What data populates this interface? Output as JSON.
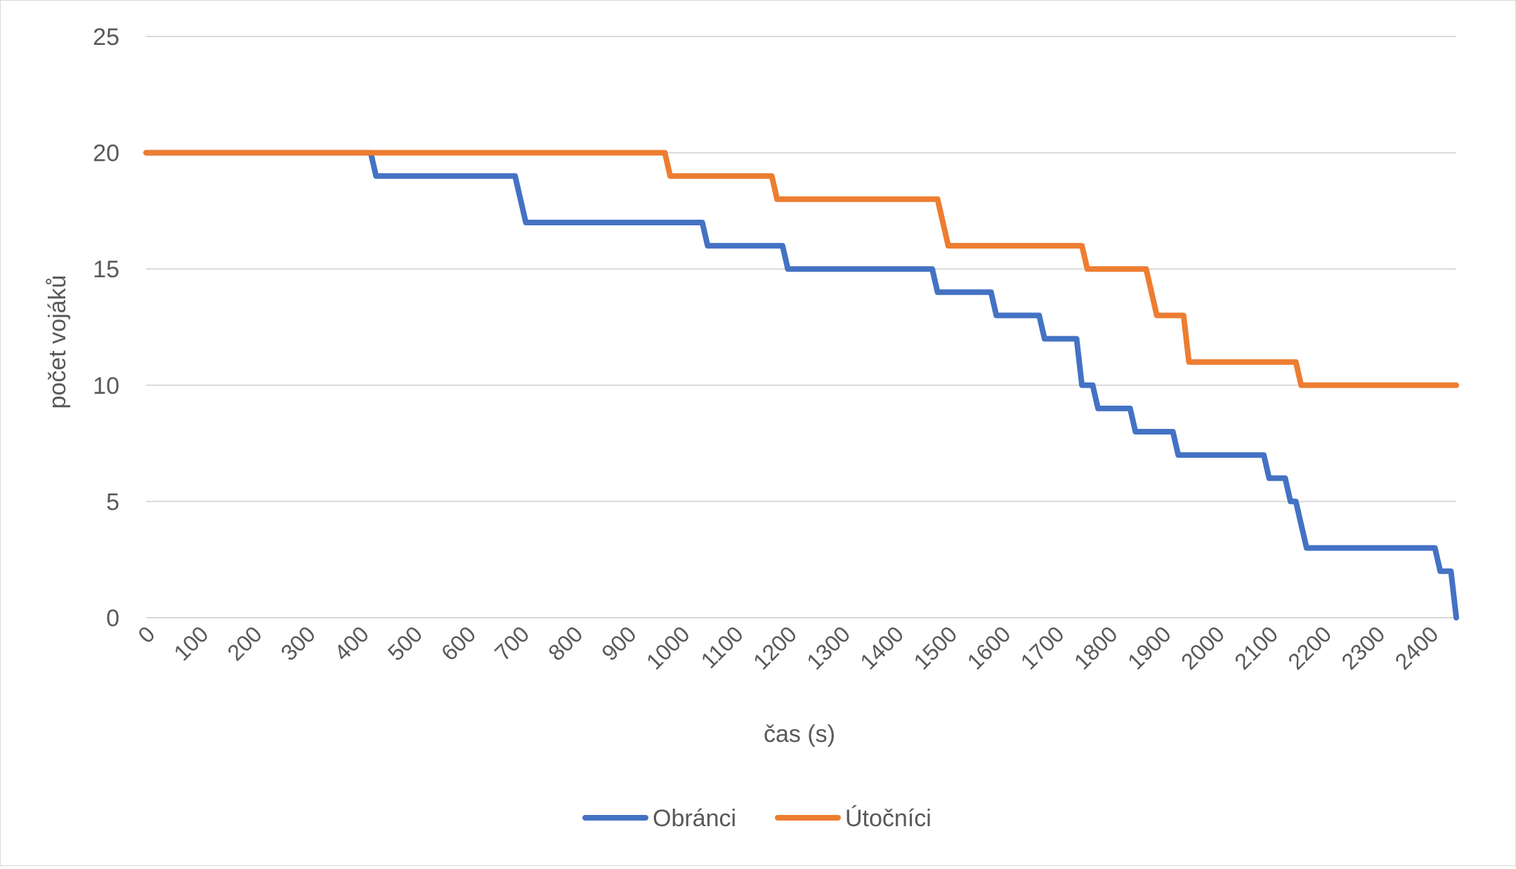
{
  "chart_data": {
    "type": "line",
    "title": "",
    "xlabel": "čas (s)",
    "ylabel": "počet vojáků",
    "xlim": [
      0,
      2450
    ],
    "ylim": [
      0,
      25
    ],
    "y_ticks": [
      0,
      5,
      10,
      15,
      20,
      25
    ],
    "x_tick_labels": [
      "0",
      "100",
      "200",
      "300",
      "400",
      "500",
      "600",
      "700",
      "800",
      "900",
      "1000",
      "1100",
      "1200",
      "1300",
      "1400",
      "1500",
      "1600",
      "1700",
      "1800",
      "1900",
      "2000",
      "2100",
      "2200",
      "2300",
      "2400"
    ],
    "grid": "horizontal",
    "legend_position": "bottom",
    "series": [
      {
        "name": "Obránci",
        "color": "#4472C4",
        "points": [
          [
            0,
            20
          ],
          [
            420,
            20
          ],
          [
            430,
            19
          ],
          [
            690,
            19
          ],
          [
            710,
            17
          ],
          [
            1040,
            17
          ],
          [
            1050,
            16
          ],
          [
            1190,
            16
          ],
          [
            1200,
            15
          ],
          [
            1470,
            15
          ],
          [
            1480,
            14
          ],
          [
            1580,
            14
          ],
          [
            1590,
            13
          ],
          [
            1670,
            13
          ],
          [
            1680,
            12
          ],
          [
            1740,
            12
          ],
          [
            1750,
            10
          ],
          [
            1770,
            10
          ],
          [
            1780,
            9
          ],
          [
            1840,
            9
          ],
          [
            1850,
            8
          ],
          [
            1920,
            8
          ],
          [
            1930,
            7
          ],
          [
            2090,
            7
          ],
          [
            2100,
            6
          ],
          [
            2130,
            6
          ],
          [
            2140,
            5
          ],
          [
            2150,
            5
          ],
          [
            2170,
            3
          ],
          [
            2410,
            3
          ],
          [
            2420,
            2
          ],
          [
            2440,
            2
          ],
          [
            2450,
            0
          ]
        ]
      },
      {
        "name": "Útočníci",
        "color": "#ED7D31",
        "points": [
          [
            0,
            20
          ],
          [
            970,
            20
          ],
          [
            980,
            19
          ],
          [
            1170,
            19
          ],
          [
            1180,
            18
          ],
          [
            1480,
            18
          ],
          [
            1500,
            16
          ],
          [
            1750,
            16
          ],
          [
            1760,
            15
          ],
          [
            1870,
            15
          ],
          [
            1890,
            13
          ],
          [
            1940,
            13
          ],
          [
            1950,
            11
          ],
          [
            2150,
            11
          ],
          [
            2160,
            10
          ],
          [
            2450,
            10
          ]
        ]
      }
    ]
  }
}
